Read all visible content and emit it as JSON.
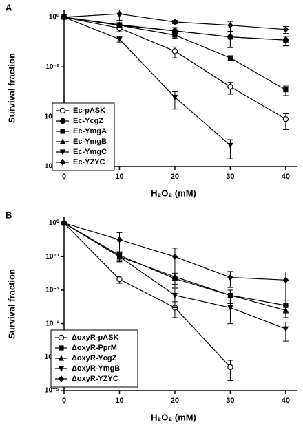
{
  "chart_data": [
    {
      "type": "line",
      "label": "A",
      "xlabel": "H₂O₂ (mM)",
      "ylabel": "Survival fraction",
      "log_y": true,
      "x": [
        0,
        10,
        20,
        30,
        40
      ],
      "xlim": [
        0,
        42
      ],
      "xticks": [
        0,
        10,
        20,
        30,
        40
      ],
      "ylim": [
        1e-06,
        2
      ],
      "yticks": [
        {
          "value": 1,
          "label": "10⁰"
        },
        {
          "value": 0.01,
          "label": "10⁻²"
        },
        {
          "value": 0.0001,
          "label": "10⁻⁴"
        },
        {
          "value": 1e-06,
          "label": "10⁻⁶"
        }
      ],
      "legend": "lower left",
      "series": [
        {
          "name": "Ec-pASK",
          "color": "#000000",
          "marker": "open-circle",
          "values": [
            1,
            0.36,
            0.043,
            0.0016,
            8e-05
          ],
          "errors": [
            0,
            0.1,
            0.02,
            0.0008,
            5e-05
          ]
        },
        {
          "name": "Ec-YcgZ",
          "color": "#000000",
          "marker": "circle",
          "values": [
            1,
            0.47,
            0.28,
            0.16,
            0.12
          ],
          "errors": [
            0,
            0.1,
            0.1,
            0.1,
            0.05
          ]
        },
        {
          "name": "Ec-YmgA",
          "color": "#000000",
          "marker": "square",
          "values": [
            1,
            0.47,
            0.19,
            0.023,
            0.0012
          ],
          "errors": [
            0,
            0.1,
            0.05,
            0.005,
            0.0005
          ]
        },
        {
          "name": "Ec-YmgB",
          "color": "#000000",
          "marker": "triangle-up",
          "values": [
            1,
            0.5,
            0.28,
            0.16,
            0.12
          ],
          "errors": [
            0,
            0.1,
            0.1,
            0.1,
            0.05
          ]
        },
        {
          "name": "Ec-YmgC",
          "color": "#000000",
          "marker": "triangle-down",
          "values": [
            1,
            0.13,
            0.0006,
            7e-06,
            null
          ],
          "errors": [
            0,
            0.03,
            0.0004,
            5e-06,
            null
          ]
        },
        {
          "name": "Ec-YZYC",
          "color": "#000000",
          "marker": "diamond",
          "values": [
            1,
            1.35,
            0.64,
            0.47,
            0.32
          ],
          "errors": [
            0,
            0.6,
            0.1,
            0.2,
            0.1
          ]
        }
      ]
    },
    {
      "type": "line",
      "label": "B",
      "xlabel": "H₂O₂ (mM)",
      "ylabel": "Survival fraction",
      "log_y": true,
      "x": [
        0,
        10,
        20,
        30,
        40
      ],
      "xlim": [
        0,
        42
      ],
      "xticks": [
        0,
        10,
        20,
        30,
        40
      ],
      "ylim": [
        1e-05,
        1.5
      ],
      "yticks": [
        {
          "value": 1,
          "label": "10⁰"
        },
        {
          "value": 0.1,
          "label": "10⁻¹"
        },
        {
          "value": 0.01,
          "label": "10⁻²"
        },
        {
          "value": 0.001,
          "label": "10⁻³"
        },
        {
          "value": 0.0001,
          "label": "10⁻⁴"
        },
        {
          "value": 1e-05,
          "label": "10⁻⁵"
        }
      ],
      "legend": "lower left",
      "series": [
        {
          "name": "ΔoxyR-pASK",
          "color": "#000000",
          "marker": "open-circle",
          "values": [
            1,
            0.021,
            0.003,
            5e-05,
            null
          ],
          "errors": [
            0,
            0.005,
            0.0015,
            3e-05,
            null
          ]
        },
        {
          "name": "ΔoxyR-PprM",
          "color": "#000000",
          "marker": "square",
          "values": [
            1,
            0.11,
            0.022,
            0.007,
            0.0035
          ],
          "errors": [
            0,
            0.03,
            0.01,
            0.003,
            0.0015
          ]
        },
        {
          "name": "ΔoxyR-YcgZ",
          "color": "#000000",
          "marker": "triangle-up",
          "values": [
            1,
            0.1,
            0.025,
            0.007,
            0.0025
          ],
          "errors": [
            0,
            0.03,
            0.01,
            0.003,
            0.001
          ]
        },
        {
          "name": "ΔoxyR-YmgB",
          "color": "#000000",
          "marker": "triangle-down",
          "values": [
            1,
            0.1,
            0.007,
            0.003,
            0.0007
          ],
          "errors": [
            0,
            0.03,
            0.004,
            0.002,
            0.0004
          ]
        },
        {
          "name": "ΔoxyR-YZYC",
          "color": "#000000",
          "marker": "diamond",
          "values": [
            1,
            0.32,
            0.1,
            0.024,
            0.02
          ],
          "errors": [
            0,
            0.2,
            0.08,
            0.012,
            0.015
          ]
        }
      ]
    }
  ]
}
